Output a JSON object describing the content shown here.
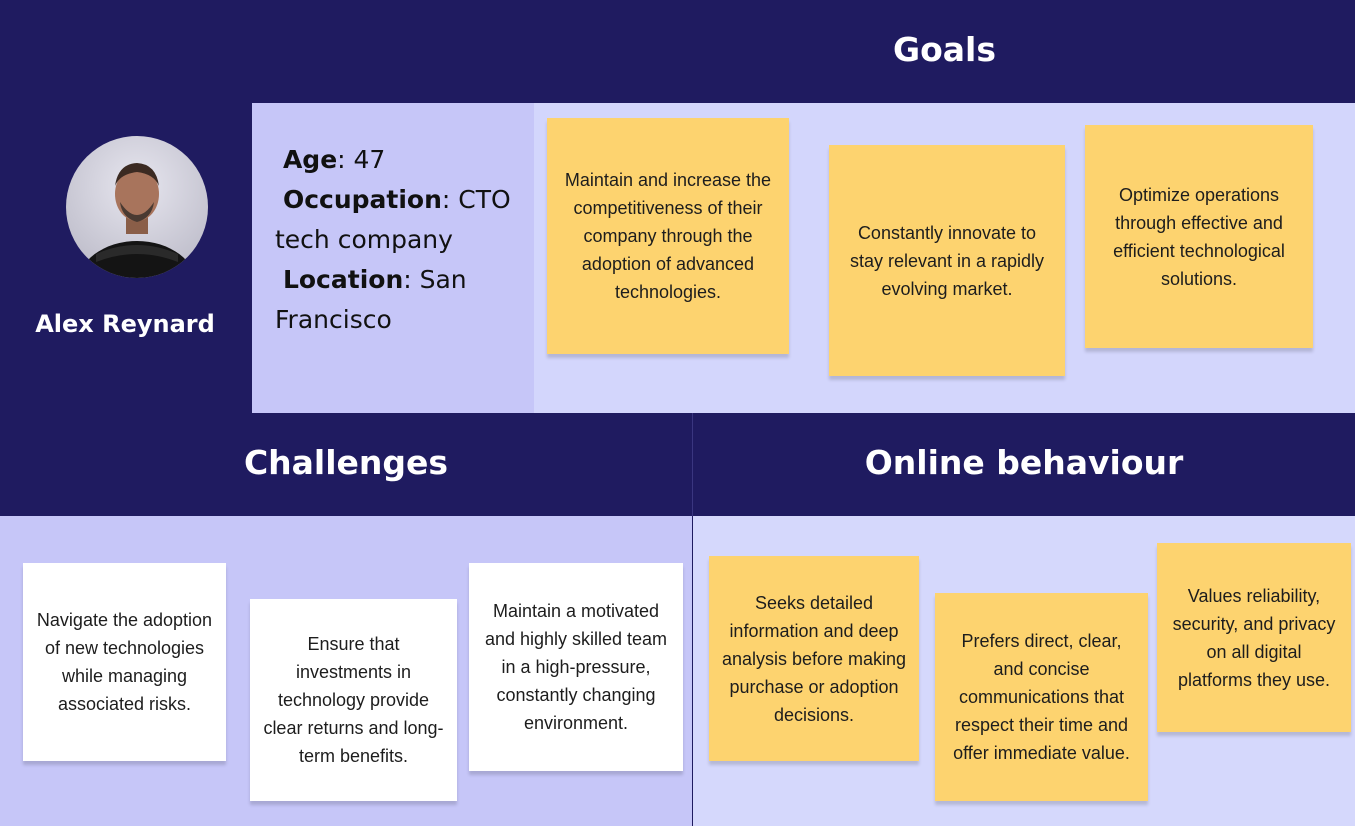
{
  "persona": {
    "name": "Alex Reynard",
    "age_label": "Age",
    "age_value": ": 47",
    "occupation_label": "Occupation",
    "occupation_value": ":  CTO tech company",
    "location_label": "Location",
    "location_value": ": San Francisco",
    "avatar_icon": "person-photo-icon"
  },
  "sections": {
    "goals_title": "Goals",
    "challenges_title": "Challenges",
    "online_title": "Online behaviour"
  },
  "goals": [
    "Maintain and increase the competitiveness of their company through the adoption of advanced technologies.",
    "Constantly innovate to stay relevant in a rapidly evolving market.",
    "Optimize operations through effective and efficient technological solutions."
  ],
  "challenges": [
    "Navigate the adoption of new technologies while managing associated risks.",
    "Ensure that investments in technology provide clear returns and long-term benefits.",
    "Maintain a motivated and highly skilled team in a high-pressure, constantly changing environment."
  ],
  "online_behaviour": [
    "Seeks detailed information and deep analysis before making purchase or adoption decisions.",
    "Prefers direct, clear, and concise communications that respect their time and offer immediate value.",
    "Values reliability, security, and privacy on all digital platforms they use."
  ],
  "colors": {
    "navy": "#1f1b60",
    "sticky_yellow": "#fdd36f",
    "sticky_white": "#ffffff",
    "panel_lavender": "#c6c6f8"
  }
}
